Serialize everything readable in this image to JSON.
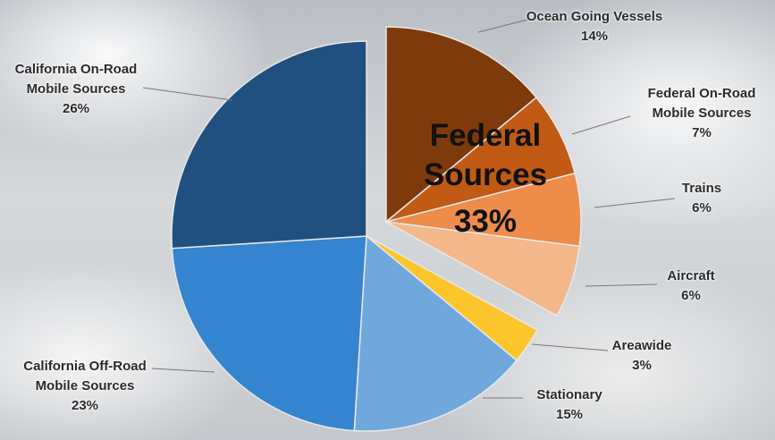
{
  "chart_data": {
    "type": "pie",
    "categories": [
      "Ocean Going Vessels",
      "Federal On-Road Mobile Sources",
      "Trains",
      "Aircraft",
      "Areawide",
      "Stationary",
      "California Off-Road Mobile Sources",
      "California On-Road Mobile Sources"
    ],
    "values": [
      14,
      7,
      6,
      6,
      3,
      15,
      23,
      26
    ],
    "value_labels": [
      "14%",
      "7%",
      "6%",
      "6%",
      "3%",
      "15%",
      "23%",
      "26%"
    ],
    "colors": [
      "#7f3a0b",
      "#c05a14",
      "#ee8c4a",
      "#f4b78a",
      "#fdc52c",
      "#70a8dd",
      "#3584cf",
      "#20507f"
    ],
    "explode": [
      0,
      1,
      2,
      3
    ],
    "annotation": "Federal Sources",
    "annotation_value": "33%"
  }
}
